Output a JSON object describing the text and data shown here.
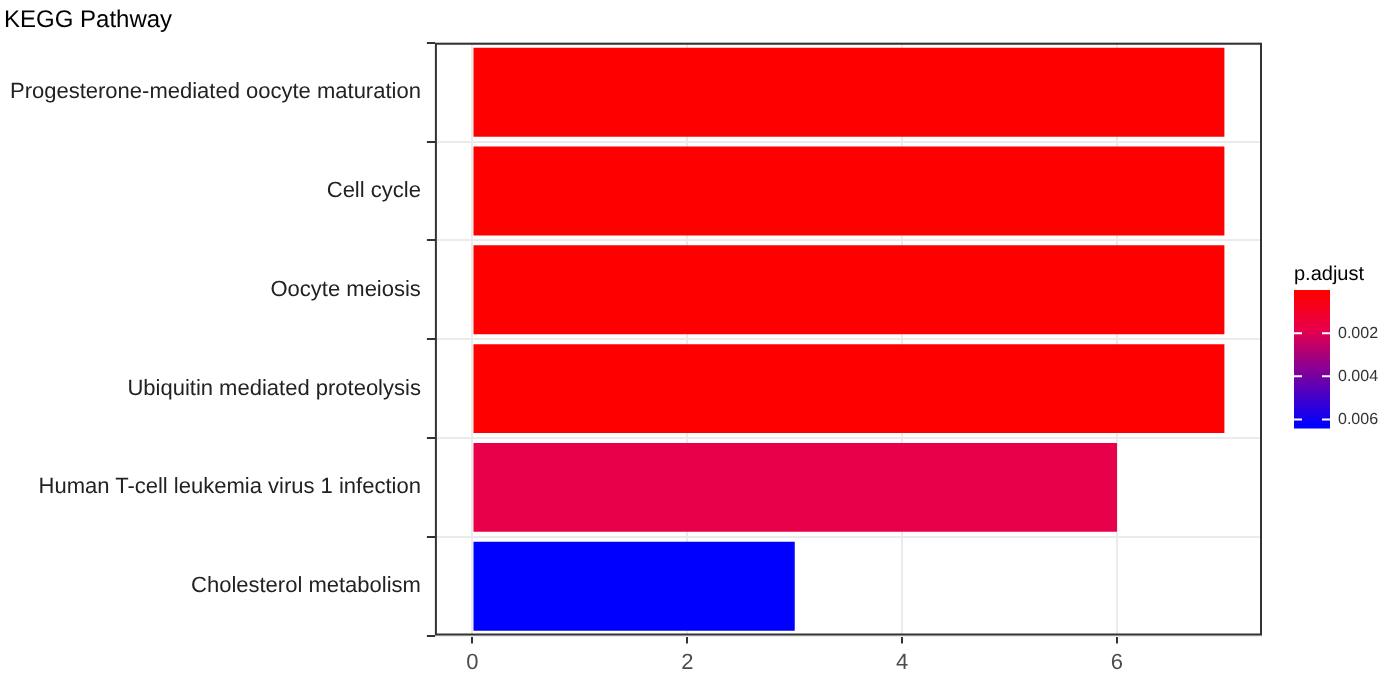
{
  "chart_data": {
    "type": "bar",
    "orientation": "horizontal",
    "title": "KEGG Pathway",
    "categories": [
      "Progesterone-mediated oocyte maturation",
      "Cell cycle",
      "Oocyte meiosis",
      "Ubiquitin mediated proteolysis",
      "Human T-cell leukemia virus 1 infection",
      "Cholesterol metabolism"
    ],
    "values": [
      7,
      7,
      7,
      7,
      6,
      3
    ],
    "colors": [
      "#ff0000",
      "#ff0000",
      "#ff0000",
      "#ff0000",
      "#e8004a",
      "#0000ff"
    ],
    "cvalues": [
      0.0001,
      0.0001,
      0.0001,
      0.0001,
      0.0018,
      0.0063
    ],
    "clabel": "p.adjust",
    "clim": [
      0,
      0.0064
    ],
    "cticks": [
      0.002,
      0.004,
      0.006
    ],
    "xlim": [
      -0.35,
      7.35
    ],
    "xticks": [
      0,
      2,
      4,
      6
    ],
    "grid": true,
    "legend": false
  }
}
